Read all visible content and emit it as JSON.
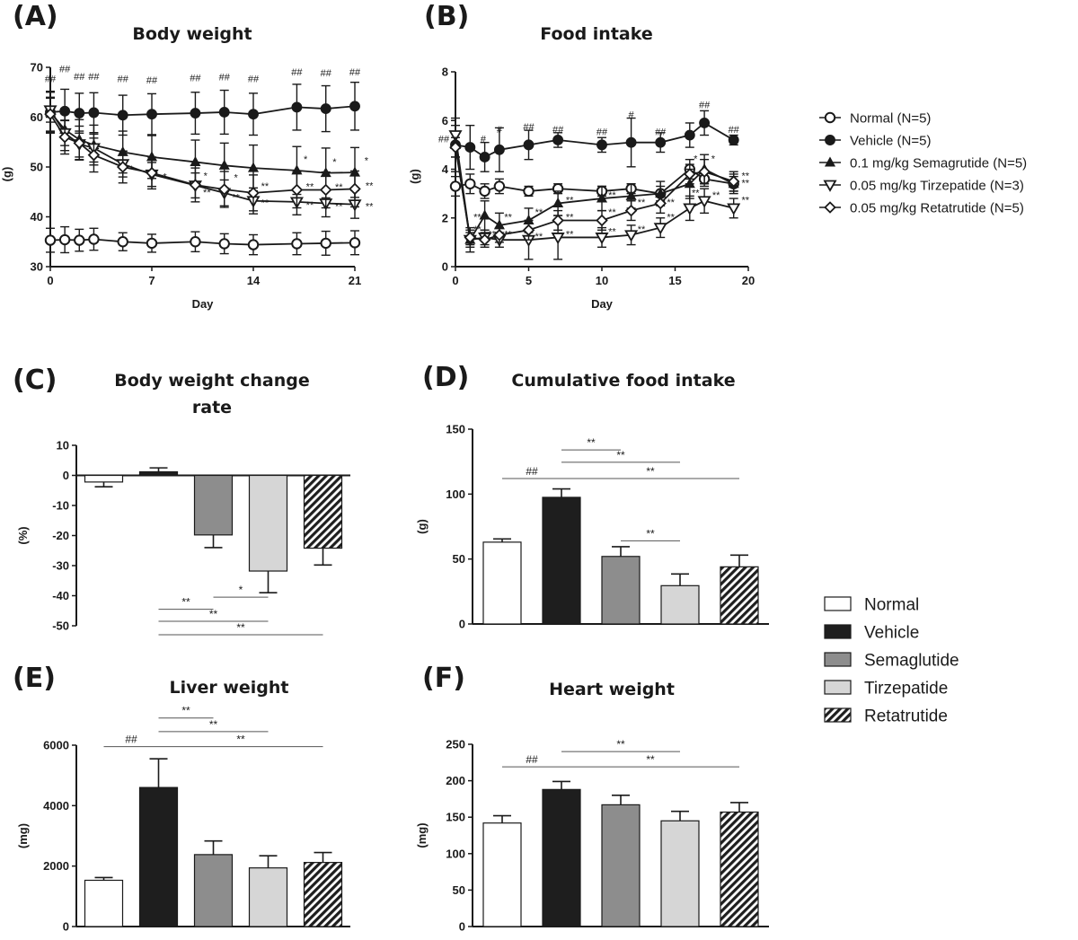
{
  "patterns": {
    "Normal": "#ffffff",
    "Vehicle": "#1e1e1e",
    "Semaglutide": "#8d8d8d",
    "Tirzepatide": "#d6d6d6",
    "Retatrutide": "hatch"
  },
  "line_legend": [
    {
      "label": "Normal (N=5)",
      "marker": "open-circle"
    },
    {
      "label": "Vehicle (N=5)",
      "marker": "filled-circle"
    },
    {
      "label": "0.1 mg/kg Semagrutide (N=5)",
      "marker": "filled-triangle"
    },
    {
      "label": "0.05 mg/kg Tirzepatide (N=3)",
      "marker": "open-down-triangle"
    },
    {
      "label": "0.05 mg/kg Retatrutide (N=5)",
      "marker": "open-diamond"
    }
  ],
  "bar_legend": [
    "Normal",
    "Vehicle",
    "Semaglutide",
    "Tirzepatide",
    "Retatrutide"
  ],
  "chart_data": [
    {
      "panel": "(A)",
      "type": "line",
      "title": "Body weight",
      "xlabel": "Day",
      "ylabel": "(g)",
      "xlim": [
        0,
        21
      ],
      "ylim": [
        30,
        70
      ],
      "xticks": [
        0,
        7,
        14,
        21
      ],
      "yticks": [
        30,
        40,
        50,
        60,
        70
      ],
      "series": [
        {
          "name": "Normal (N=5)",
          "marker": "open-circle",
          "x": [
            0,
            1,
            2,
            3,
            5,
            7,
            10,
            12,
            14,
            17,
            19,
            21
          ],
          "y": [
            35.3,
            35.4,
            35.3,
            35.5,
            35,
            34.7,
            35,
            34.6,
            34.4,
            34.6,
            34.7,
            34.8
          ],
          "err": [
            2.4,
            2.6,
            2.2,
            2.2,
            1.8,
            1.8,
            2,
            2,
            2,
            2.2,
            2.4,
            2.4
          ]
        },
        {
          "name": "Vehicle (N=5)",
          "marker": "filled-circle",
          "x": [
            0,
            1,
            2,
            3,
            5,
            7,
            10,
            12,
            14,
            17,
            19,
            21
          ],
          "y": [
            61,
            61.2,
            60.8,
            60.9,
            60.4,
            60.6,
            60.8,
            61,
            60.6,
            62,
            61.7,
            62.2
          ],
          "err": [
            4.2,
            4.4,
            4,
            4,
            4,
            4.1,
            4.2,
            4.4,
            4.2,
            4.6,
            4.6,
            4.8
          ]
        },
        {
          "name": "0.1 mg/kg Semagrutide (N=5)",
          "marker": "filled-triangle",
          "x": [
            0,
            1,
            2,
            3,
            5,
            7,
            10,
            12,
            14,
            17,
            19,
            21
          ],
          "y": [
            61,
            57.5,
            55.5,
            54.4,
            53,
            52,
            51,
            50.3,
            49.8,
            49.3,
            48.8,
            48.9
          ],
          "err": [
            4,
            4.2,
            4,
            4,
            4.2,
            4.3,
            4.4,
            4.5,
            4.6,
            4.8,
            5,
            5
          ]
        },
        {
          "name": "0.05 mg/kg Tirzepatide (N=3)",
          "marker": "open-down-triangle",
          "x": [
            0,
            1,
            2,
            3,
            5,
            7,
            10,
            12,
            14,
            17,
            19,
            21
          ],
          "y": [
            61.4,
            56.8,
            54.6,
            53.8,
            50.6,
            48.5,
            46.3,
            44.8,
            43.2,
            43,
            42.7,
            42.5
          ],
          "err": [
            2.4,
            2.5,
            2.6,
            2.8,
            2.6,
            2.4,
            2.5,
            2.6,
            2.6,
            2.6,
            2.7,
            2.8
          ]
        },
        {
          "name": "0.05 mg/kg Retatrutide (N=5)",
          "marker": "open-diamond",
          "x": [
            0,
            1,
            2,
            3,
            5,
            7,
            10,
            12,
            14,
            17,
            19,
            21
          ],
          "y": [
            60.6,
            56,
            54.8,
            52.4,
            50,
            48.8,
            46.4,
            45.5,
            44.8,
            45.4,
            45.4,
            45.6
          ],
          "err": [
            3.4,
            3.4,
            3.4,
            3.4,
            3.2,
            3.2,
            3.4,
            3.6,
            3.6,
            3.6,
            3.6,
            3.6
          ]
        }
      ],
      "annotations": [
        {
          "x": 0,
          "y": 67,
          "text": "##"
        },
        {
          "x": 1,
          "y": 69,
          "text": "##"
        },
        {
          "x": 2,
          "y": 67.5,
          "text": "##"
        },
        {
          "x": 3,
          "y": 67.5,
          "text": "##"
        },
        {
          "x": 5,
          "y": 67,
          "text": "##"
        },
        {
          "x": 7,
          "y": 66.8,
          "text": "##"
        },
        {
          "x": 10,
          "y": 67.2,
          "text": "##"
        },
        {
          "x": 12,
          "y": 67.4,
          "text": "##"
        },
        {
          "x": 14,
          "y": 67,
          "text": "##"
        },
        {
          "x": 17,
          "y": 68.4,
          "text": "##"
        },
        {
          "x": 19,
          "y": 68.2,
          "text": "##"
        },
        {
          "x": 21,
          "y": 68.4,
          "text": "##"
        },
        {
          "x": 5.6,
          "y": 48.9,
          "text": "*"
        },
        {
          "x": 7.9,
          "y": 47.4,
          "text": "*"
        },
        {
          "x": 10.7,
          "y": 47.6,
          "text": "*"
        },
        {
          "x": 12.8,
          "y": 47.2,
          "text": "*"
        },
        {
          "x": 17.6,
          "y": 50.9,
          "text": "*"
        },
        {
          "x": 19.6,
          "y": 50.4,
          "text": "*"
        },
        {
          "x": 21.8,
          "y": 50.6,
          "text": "*"
        },
        {
          "x": 10.8,
          "y": 44.2,
          "text": "**"
        },
        {
          "x": 12.8,
          "y": 43.2,
          "text": "**"
        },
        {
          "x": 14.8,
          "y": 45.5,
          "text": "**"
        },
        {
          "x": 14.8,
          "y": 42.2,
          "text": "**"
        },
        {
          "x": 17.9,
          "y": 45.4,
          "text": "**"
        },
        {
          "x": 17.9,
          "y": 41.7,
          "text": "**"
        },
        {
          "x": 19.9,
          "y": 45.3,
          "text": "**"
        },
        {
          "x": 19.9,
          "y": 41.4,
          "text": "**"
        },
        {
          "x": 22,
          "y": 45.6,
          "text": "**"
        },
        {
          "x": 22,
          "y": 41.4,
          "text": "**"
        }
      ]
    },
    {
      "panel": "(B)",
      "type": "line",
      "title": "Food intake",
      "xlabel": "Day",
      "ylabel": "(g)",
      "xlim": [
        0,
        20
      ],
      "ylim": [
        0,
        8
      ],
      "xticks": [
        0,
        5,
        10,
        15,
        20
      ],
      "yticks": [
        0,
        2,
        4,
        6,
        8
      ],
      "series": [
        {
          "name": "Normal (N=5)",
          "marker": "open-circle",
          "x": [
            0,
            1,
            2,
            3,
            5,
            7,
            10,
            12,
            14,
            16,
            17,
            19
          ],
          "y": [
            3.3,
            3.4,
            3.1,
            3.3,
            3.1,
            3.2,
            3.1,
            3.2,
            3,
            4,
            3.6,
            3.4
          ],
          "err": [
            0.4,
            0.4,
            0.3,
            0.3,
            0.2,
            0.2,
            0.2,
            0.2,
            0.3,
            0.4,
            0.3,
            0.3
          ]
        },
        {
          "name": "Vehicle (N=5)",
          "marker": "filled-circle",
          "x": [
            0,
            1,
            2,
            3,
            5,
            7,
            10,
            12,
            14,
            16,
            17,
            19
          ],
          "y": [
            5,
            4.9,
            4.5,
            4.8,
            5,
            5.2,
            5,
            5.1,
            5.1,
            5.4,
            5.9,
            5.2
          ],
          "err": [
            1.1,
            0.9,
            0.6,
            0.9,
            0.6,
            0.3,
            0.3,
            1,
            0.4,
            0.5,
            0.5,
            0.2
          ]
        },
        {
          "name": "0.1 mg/kg Semagrutide (N=5)",
          "marker": "filled-triangle",
          "x": [
            0,
            1,
            2,
            3,
            5,
            7,
            10,
            12,
            14,
            16,
            17,
            19
          ],
          "y": [
            5,
            1.1,
            2.1,
            1.7,
            1.9,
            2.6,
            2.8,
            2.9,
            3,
            3.4,
            4,
            3.4
          ],
          "err": [
            0.5,
            0.5,
            0.6,
            0.5,
            0.5,
            0.5,
            0.5,
            0.5,
            0.5,
            0.6,
            0.6,
            0.4
          ]
        },
        {
          "name": "0.05 mg/kg Tirzepatide (N=3)",
          "marker": "open-down-triangle",
          "x": [
            0,
            1,
            2,
            3,
            5,
            7,
            10,
            12,
            14,
            16,
            17,
            19
          ],
          "y": [
            5.4,
            1.1,
            1.2,
            1.1,
            1.1,
            1.2,
            1.2,
            1.3,
            1.6,
            2.4,
            2.7,
            2.4
          ],
          "err": [
            0.4,
            0.3,
            0.3,
            0.3,
            0.8,
            0.9,
            0.4,
            0.4,
            0.4,
            0.5,
            0.5,
            0.4
          ]
        },
        {
          "name": "0.05 mg/kg Retatrutide (N=5)",
          "marker": "open-diamond",
          "x": [
            0,
            1,
            2,
            3,
            5,
            7,
            10,
            12,
            14,
            16,
            17,
            19
          ],
          "y": [
            4.9,
            1.2,
            1.1,
            1.3,
            1.5,
            1.9,
            1.9,
            2.3,
            2.6,
            3.8,
            3.9,
            3.5
          ],
          "err": [
            0.4,
            0.3,
            0.3,
            0.3,
            0.4,
            0.4,
            0.4,
            0.4,
            0.4,
            0.4,
            0.5,
            0.4
          ]
        }
      ],
      "annotations": [
        {
          "x": -0.8,
          "y": 5.1,
          "text": "##"
        },
        {
          "x": 1.9,
          "y": 5.1,
          "text": "#"
        },
        {
          "x": 3,
          "y": 5.5,
          "text": "#"
        },
        {
          "x": 5,
          "y": 5.6,
          "text": "##"
        },
        {
          "x": 7,
          "y": 5.5,
          "text": "##"
        },
        {
          "x": 10,
          "y": 5.4,
          "text": "##"
        },
        {
          "x": 12,
          "y": 6.1,
          "text": "#"
        },
        {
          "x": 14,
          "y": 5.4,
          "text": "##"
        },
        {
          "x": 17,
          "y": 6.5,
          "text": "##"
        },
        {
          "x": 19,
          "y": 5.5,
          "text": "##"
        },
        {
          "x": 1.5,
          "y": 1.9,
          "text": "**"
        },
        {
          "x": 1.5,
          "y": 1.4,
          "text": "**"
        },
        {
          "x": 2.5,
          "y": 1.2,
          "text": "**"
        },
        {
          "x": 3.6,
          "y": 1.9,
          "text": "**"
        },
        {
          "x": 3.6,
          "y": 1.2,
          "text": "**"
        },
        {
          "x": 5.7,
          "y": 2.1,
          "text": "**"
        },
        {
          "x": 5.7,
          "y": 1.1,
          "text": "**"
        },
        {
          "x": 7.8,
          "y": 2.6,
          "text": "**"
        },
        {
          "x": 7.8,
          "y": 1.9,
          "text": "**"
        },
        {
          "x": 7.8,
          "y": 1.2,
          "text": "**"
        },
        {
          "x": 10.7,
          "y": 2.8,
          "text": "**"
        },
        {
          "x": 10.7,
          "y": 2.1,
          "text": "**"
        },
        {
          "x": 10.7,
          "y": 1.3,
          "text": "**"
        },
        {
          "x": 12.7,
          "y": 2.5,
          "text": "**"
        },
        {
          "x": 12.7,
          "y": 1.4,
          "text": "**"
        },
        {
          "x": 14.7,
          "y": 2.5,
          "text": "**"
        },
        {
          "x": 14.7,
          "y": 1.9,
          "text": "**"
        },
        {
          "x": 16.4,
          "y": 4.3,
          "text": "*"
        },
        {
          "x": 17.6,
          "y": 4.3,
          "text": "*"
        },
        {
          "x": 16.4,
          "y": 2.9,
          "text": "**"
        },
        {
          "x": 17.8,
          "y": 2.8,
          "text": "**"
        },
        {
          "x": 19.8,
          "y": 3.6,
          "text": "**"
        },
        {
          "x": 19.8,
          "y": 3.3,
          "text": "**"
        },
        {
          "x": 19.8,
          "y": 2.6,
          "text": "**"
        }
      ]
    },
    {
      "panel": "(C)",
      "type": "bar",
      "title": "Body weight change rate",
      "ylabel": "(%)",
      "ylim": [
        -50,
        10
      ],
      "yticks": [
        10,
        0,
        -10,
        -20,
        -30,
        -40,
        -50
      ],
      "categories": [
        "Normal",
        "Vehicle",
        "Semaglutide",
        "Tirzepatide",
        "Retatrutide"
      ],
      "values": [
        -2.2,
        1.2,
        -19.8,
        -31.8,
        -24.2
      ],
      "errors": [
        1.6,
        1.3,
        4.2,
        7.2,
        5.6
      ],
      "brackets": [
        {
          "from": 2,
          "to": 3,
          "y": -40.5,
          "text": "*"
        },
        {
          "from": 1,
          "to": 2,
          "y": -44.5,
          "text": "**"
        },
        {
          "from": 1,
          "to": 3,
          "y": -48.5,
          "text": "**"
        },
        {
          "from": 1,
          "to": 4,
          "y": -53,
          "text": "**"
        }
      ]
    },
    {
      "panel": "(D)",
      "type": "bar",
      "title": "Cumulative food intake",
      "ylabel": "(g)",
      "ylim": [
        0,
        150
      ],
      "yticks": [
        0,
        50,
        100,
        150
      ],
      "categories": [
        "Normal",
        "Vehicle",
        "Semaglutide",
        "Tirzepatide",
        "Retatrutide"
      ],
      "values": [
        63,
        97.5,
        52,
        29.5,
        44
      ],
      "errors": [
        2.5,
        6.5,
        7.5,
        9,
        9
      ],
      "brackets": [
        {
          "from": 1,
          "to": 2,
          "y": 134,
          "text": "**"
        },
        {
          "from": 1,
          "to": 3,
          "y": 124.5,
          "text": "**"
        },
        {
          "from": 1,
          "to": 4,
          "y": 112,
          "text": "**"
        },
        {
          "from": 0,
          "to": 1,
          "y": 112,
          "text": "##"
        },
        {
          "from": 2,
          "to": 3,
          "y": 64,
          "text": "**"
        }
      ]
    },
    {
      "panel": "(E)",
      "type": "bar",
      "title": "Liver weight",
      "ylabel": "(mg)",
      "ylim": [
        0,
        6000
      ],
      "yticks": [
        0,
        2000,
        4000,
        6000
      ],
      "categories": [
        "Normal",
        "Vehicle",
        "Semaglutide",
        "Tirzepatide",
        "Retatrutide"
      ],
      "values": [
        1530,
        4600,
        2380,
        1940,
        2120
      ],
      "errors": [
        90,
        950,
        450,
        400,
        330
      ],
      "brackets": [
        {
          "from": 1,
          "to": 2,
          "y": 6900,
          "text": "**"
        },
        {
          "from": 1,
          "to": 3,
          "y": 6450,
          "text": "**"
        },
        {
          "from": 1,
          "to": 4,
          "y": 5950,
          "text": "**"
        },
        {
          "from": 0,
          "to": 1,
          "y": 5950,
          "text": "##"
        }
      ]
    },
    {
      "panel": "(F)",
      "type": "bar",
      "title": "Heart weight",
      "ylabel": "(mg)",
      "ylim": [
        0,
        250
      ],
      "yticks": [
        0,
        50,
        100,
        150,
        200,
        250
      ],
      "categories": [
        "Normal",
        "Vehicle",
        "Semaglutide",
        "Tirzepatide",
        "Retatrutide"
      ],
      "values": [
        142,
        188,
        167,
        145,
        157
      ],
      "errors": [
        10,
        11,
        13,
        13,
        13
      ],
      "brackets": [
        {
          "from": 1,
          "to": 3,
          "y": 240,
          "text": "**"
        },
        {
          "from": 1,
          "to": 4,
          "y": 219,
          "text": "**"
        },
        {
          "from": 0,
          "to": 1,
          "y": 219,
          "text": "##"
        }
      ]
    }
  ]
}
